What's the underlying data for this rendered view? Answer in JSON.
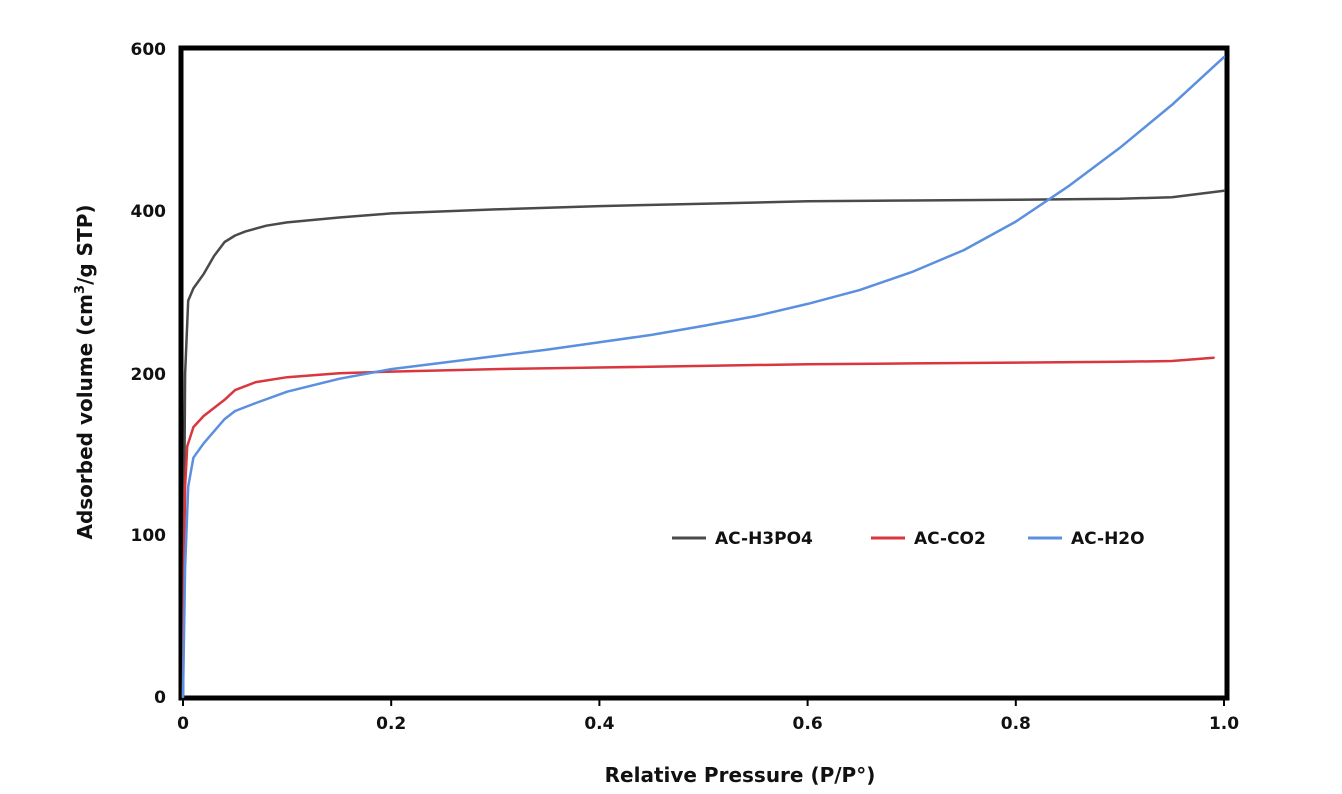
{
  "chart_data": {
    "type": "line",
    "xlabel": "Relative Pressure (P/P°)",
    "ylabel_main": "Adsorbed volume (cm",
    "ylabel_sup": "3",
    "ylabel_tail": "/g STP)",
    "xlim": [
      0,
      1.0
    ],
    "ylim": [
      0,
      600
    ],
    "x_ticks": [
      {
        "value": 0,
        "label": "0"
      },
      {
        "value": 0.2,
        "label": "0.2"
      },
      {
        "value": 0.4,
        "label": "0.4"
      },
      {
        "value": 0.6,
        "label": "0.6"
      },
      {
        "value": 0.8,
        "label": "0.8"
      },
      {
        "value": 1.0,
        "label": "1.0"
      }
    ],
    "y_ticks": [
      {
        "value": 0,
        "label": "0"
      },
      {
        "value": 100,
        "label": "100"
      },
      {
        "value": 200,
        "label": "200"
      },
      {
        "value": 400,
        "label": "400"
      },
      {
        "value": 600,
        "label": "600"
      }
    ],
    "y_tick_positions": [
      {
        "value": 0,
        "pos": 0
      },
      {
        "value": 100,
        "pos": 100
      },
      {
        "value": 200,
        "pos": 200
      },
      {
        "value": 400,
        "pos": 400
      },
      {
        "value": 600,
        "pos": 600
      }
    ],
    "grid": false,
    "legend_position": "lower-right",
    "series": [
      {
        "name": "AC-H3PO4",
        "color": "#4a4a4a",
        "points": [
          [
            0,
            0
          ],
          [
            0.001,
            100
          ],
          [
            0.002,
            200
          ],
          [
            0.005,
            290
          ],
          [
            0.01,
            305
          ],
          [
            0.02,
            323
          ],
          [
            0.03,
            345
          ],
          [
            0.04,
            362
          ],
          [
            0.05,
            370
          ],
          [
            0.06,
            375
          ],
          [
            0.08,
            382
          ],
          [
            0.1,
            386
          ],
          [
            0.15,
            392
          ],
          [
            0.2,
            397
          ],
          [
            0.3,
            402
          ],
          [
            0.4,
            406
          ],
          [
            0.5,
            409
          ],
          [
            0.6,
            412
          ],
          [
            0.7,
            413
          ],
          [
            0.8,
            414
          ],
          [
            0.9,
            415
          ],
          [
            0.95,
            417
          ],
          [
            1.0,
            425
          ]
        ]
      },
      {
        "name": "AC-CO2",
        "color": "#d9363e",
        "points": [
          [
            0,
            0
          ],
          [
            0.001,
            80
          ],
          [
            0.002,
            130
          ],
          [
            0.004,
            155
          ],
          [
            0.01,
            167
          ],
          [
            0.02,
            174
          ],
          [
            0.04,
            184
          ],
          [
            0.05,
            190
          ],
          [
            0.07,
            195
          ],
          [
            0.1,
            198
          ],
          [
            0.15,
            201
          ],
          [
            0.2,
            203
          ],
          [
            0.3,
            206
          ],
          [
            0.4,
            208
          ],
          [
            0.5,
            210
          ],
          [
            0.6,
            212
          ],
          [
            0.7,
            213
          ],
          [
            0.8,
            214
          ],
          [
            0.9,
            215
          ],
          [
            0.95,
            216
          ],
          [
            0.99,
            220
          ]
        ]
      },
      {
        "name": "AC-H2O",
        "color": "#5b8fe0",
        "points": [
          [
            0,
            0
          ],
          [
            0.002,
            80
          ],
          [
            0.005,
            130
          ],
          [
            0.01,
            148
          ],
          [
            0.02,
            157
          ],
          [
            0.04,
            172
          ],
          [
            0.05,
            177
          ],
          [
            0.07,
            182
          ],
          [
            0.1,
            189
          ],
          [
            0.15,
            197
          ],
          [
            0.2,
            206
          ],
          [
            0.25,
            214
          ],
          [
            0.3,
            222
          ],
          [
            0.35,
            230
          ],
          [
            0.4,
            239
          ],
          [
            0.45,
            248
          ],
          [
            0.5,
            259
          ],
          [
            0.55,
            271
          ],
          [
            0.6,
            286
          ],
          [
            0.65,
            303
          ],
          [
            0.7,
            325
          ],
          [
            0.75,
            352
          ],
          [
            0.8,
            387
          ],
          [
            0.85,
            430
          ],
          [
            0.9,
            478
          ],
          [
            0.95,
            531
          ],
          [
            1.0,
            590
          ]
        ]
      }
    ]
  }
}
